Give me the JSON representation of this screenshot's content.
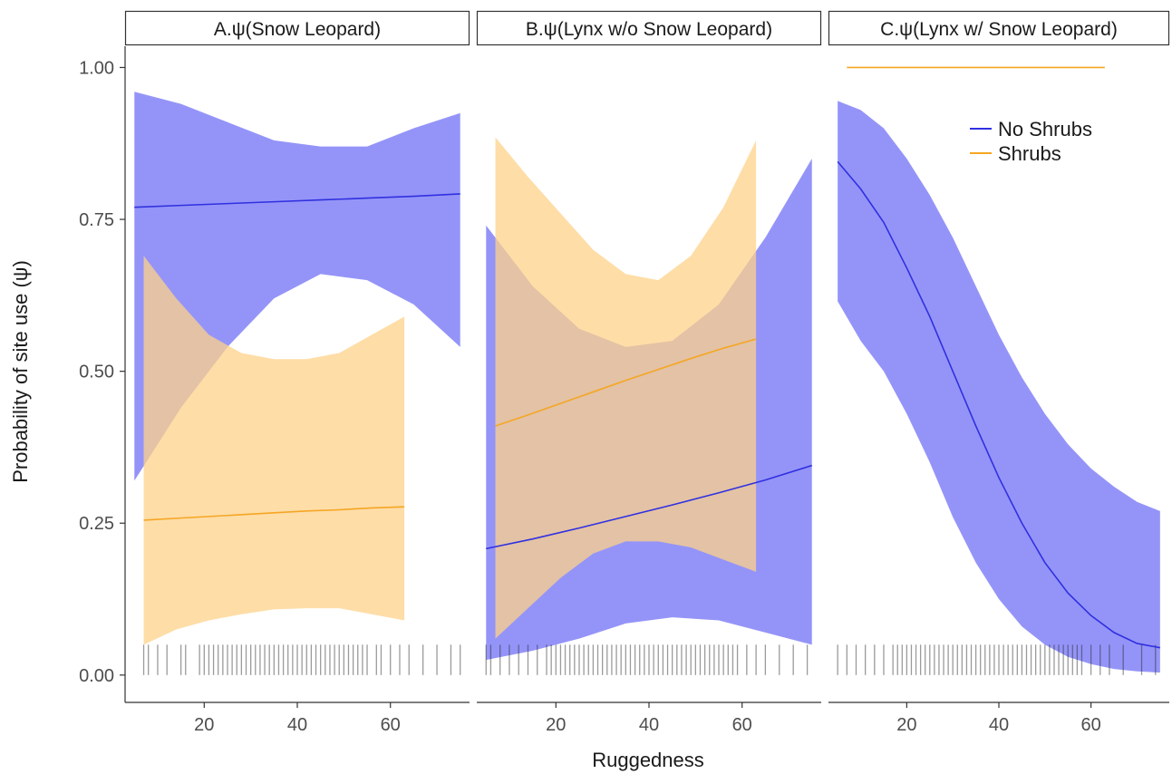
{
  "chart_data": {
    "type": "line",
    "xlabel": "Ruggedness",
    "ylabel": "Probability of site use (ψ)",
    "xlim": [
      3,
      77
    ],
    "ylim": [
      -0.045,
      1.035
    ],
    "x_ticks": [
      20,
      40,
      60
    ],
    "y_ticks": [
      0.0,
      0.25,
      0.5,
      0.75,
      1.0
    ],
    "y_tick_labels": [
      "0.00",
      "0.25",
      "0.50",
      "0.75",
      "1.00"
    ],
    "colors": {
      "No Shrubs": "#3030e0",
      "Shrubs": "#f5a623"
    },
    "ribbon_colors": {
      "No Shrubs": "#6b6bf5",
      "Shrubs": "#fdd18a"
    },
    "legend": {
      "position": "top-right",
      "entries": [
        "No Shrubs",
        "Shrubs"
      ]
    },
    "panels": [
      {
        "title": "A.ψ(Snow Leopard)",
        "series": [
          {
            "name": "No Shrubs",
            "x": [
              5,
              15,
              25,
              35,
              45,
              55,
              65,
              75
            ],
            "y": [
              0.77,
              0.773,
              0.776,
              0.779,
              0.782,
              0.785,
              0.788,
              0.792
            ],
            "lower": [
              0.32,
              0.44,
              0.54,
              0.62,
              0.66,
              0.65,
              0.61,
              0.54
            ],
            "upper": [
              0.96,
              0.94,
              0.91,
              0.88,
              0.87,
              0.87,
              0.9,
              0.925
            ]
          },
          {
            "name": "Shrubs",
            "x": [
              7,
              14,
              21,
              28,
              35,
              42,
              49,
              56,
              63
            ],
            "y": [
              0.255,
              0.258,
              0.261,
              0.264,
              0.267,
              0.27,
              0.272,
              0.275,
              0.277
            ],
            "lower": [
              0.05,
              0.075,
              0.09,
              0.1,
              0.108,
              0.11,
              0.11,
              0.1,
              0.09
            ],
            "upper": [
              0.69,
              0.62,
              0.56,
              0.53,
              0.52,
              0.52,
              0.53,
              0.56,
              0.59
            ]
          }
        ],
        "rug": [
          7,
          8,
          10,
          12,
          15,
          16,
          19,
          20,
          21,
          22,
          23,
          24,
          25,
          26,
          27,
          28,
          29,
          30,
          31,
          32,
          33,
          34,
          35,
          36,
          37,
          38,
          39,
          40,
          41,
          42,
          43,
          44,
          45,
          46,
          47,
          48,
          49,
          50,
          51,
          52,
          53,
          54,
          55,
          57,
          58,
          60,
          62,
          64,
          67,
          70,
          73,
          75
        ]
      },
      {
        "title": "B.ψ(Lynx w/o Snow Leopard)",
        "series": [
          {
            "name": "No Shrubs",
            "x": [
              5,
              15,
              25,
              35,
              45,
              55,
              65,
              75
            ],
            "y": [
              0.208,
              0.224,
              0.242,
              0.261,
              0.28,
              0.3,
              0.321,
              0.345
            ],
            "lower": [
              0.025,
              0.04,
              0.06,
              0.085,
              0.095,
              0.09,
              0.07,
              0.05
            ],
            "upper": [
              0.74,
              0.64,
              0.57,
              0.54,
              0.55,
              0.61,
              0.72,
              0.85
            ]
          },
          {
            "name": "Shrubs",
            "x": [
              7,
              14,
              21,
              28,
              35,
              42,
              49,
              56,
              63
            ],
            "y": [
              0.41,
              0.428,
              0.447,
              0.466,
              0.485,
              0.503,
              0.521,
              0.538,
              0.553
            ],
            "lower": [
              0.06,
              0.11,
              0.16,
              0.2,
              0.22,
              0.22,
              0.21,
              0.19,
              0.17
            ],
            "upper": [
              0.885,
              0.82,
              0.76,
              0.7,
              0.66,
              0.65,
              0.69,
              0.77,
              0.88
            ]
          }
        ],
        "rug": [
          5,
          6,
          8,
          10,
          12,
          14,
          16,
          18,
          19,
          20,
          21,
          22,
          23,
          24,
          25,
          26,
          27,
          28,
          29,
          30,
          31,
          32,
          33,
          34,
          35,
          36,
          37,
          38,
          39,
          40,
          41,
          42,
          43,
          44,
          45,
          46,
          47,
          48,
          49,
          50,
          51,
          52,
          53,
          54,
          55,
          56,
          57,
          58,
          59,
          61,
          63,
          65,
          68,
          71,
          74
        ]
      },
      {
        "title": "C.ψ(Lynx w/ Snow Leopard)",
        "series": [
          {
            "name": "No Shrubs",
            "x": [
              5,
              10,
              15,
              20,
              25,
              30,
              35,
              40,
              45,
              50,
              55,
              60,
              65,
              70,
              75
            ],
            "y": [
              0.845,
              0.8,
              0.745,
              0.67,
              0.59,
              0.5,
              0.41,
              0.325,
              0.25,
              0.185,
              0.135,
              0.098,
              0.07,
              0.052,
              0.045
            ],
            "lower": [
              0.615,
              0.55,
              0.5,
              0.43,
              0.35,
              0.26,
              0.185,
              0.125,
              0.08,
              0.05,
              0.03,
              0.018,
              0.01,
              0.006,
              0.004
            ],
            "upper": [
              0.945,
              0.93,
              0.9,
              0.85,
              0.79,
              0.72,
              0.64,
              0.56,
              0.49,
              0.43,
              0.38,
              0.34,
              0.31,
              0.285,
              0.27
            ]
          },
          {
            "name": "Shrubs",
            "x": [
              7,
              63
            ],
            "y": [
              1.0,
              1.0
            ],
            "lower": [
              1.0,
              1.0
            ],
            "upper": [
              1.0,
              1.0
            ]
          }
        ],
        "rug": [
          5,
          7,
          9,
          11,
          13,
          15,
          17,
          18,
          19,
          20,
          21,
          22,
          23,
          24,
          25,
          26,
          27,
          28,
          29,
          30,
          31,
          32,
          33,
          34,
          35,
          36,
          37,
          38,
          39,
          40,
          41,
          42,
          43,
          44,
          45,
          46,
          47,
          48,
          49,
          50,
          51,
          52,
          53,
          54,
          55,
          56,
          57,
          58,
          60,
          62,
          64,
          67,
          71,
          74
        ]
      }
    ]
  }
}
